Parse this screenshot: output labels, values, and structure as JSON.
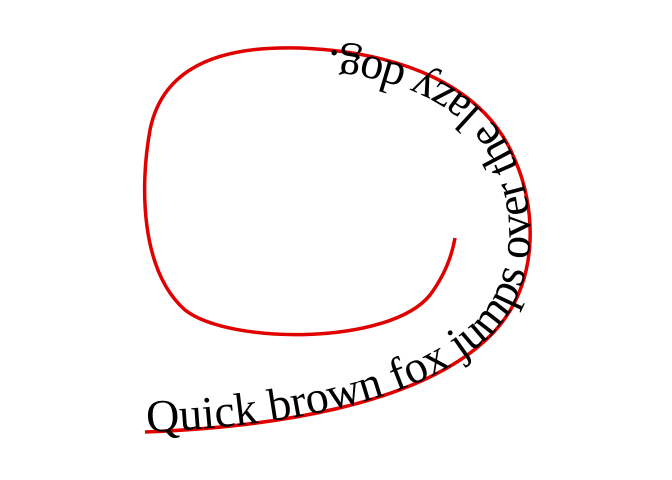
{
  "text_on_path": {
    "text": "Quick brown fox jumps over the lazy dog.",
    "text_color": "#000000",
    "path_color": "#e00000",
    "background": "#ffffff"
  }
}
